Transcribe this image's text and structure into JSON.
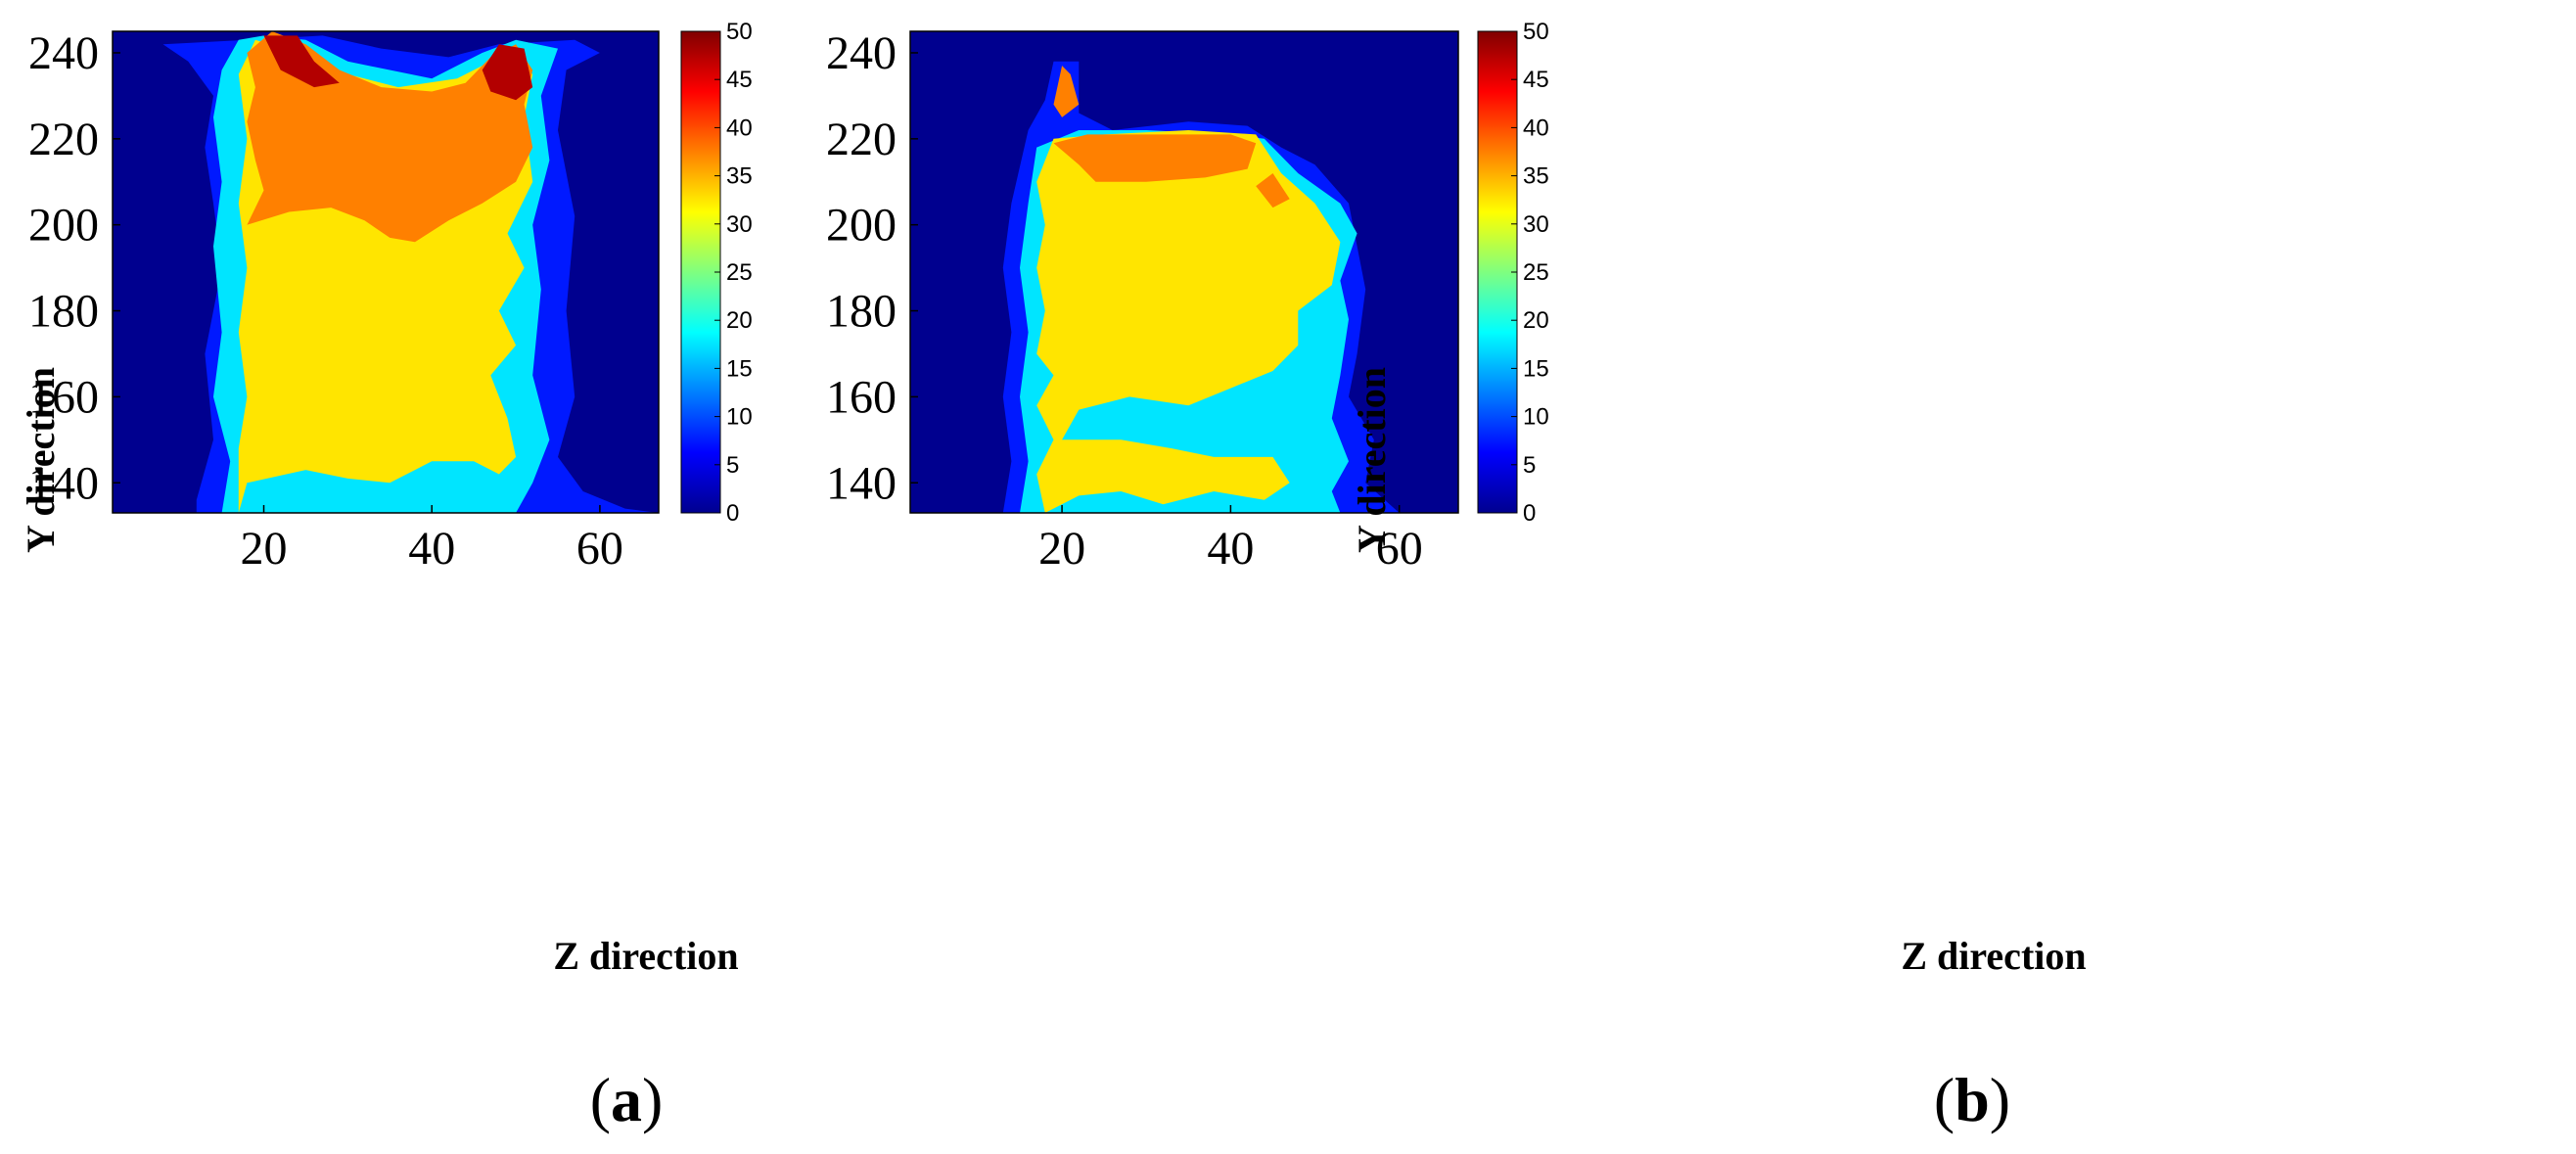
{
  "figure": {
    "panels": [
      {
        "label_open": "(",
        "label_letter": "a",
        "label_close": ")"
      },
      {
        "label_open": "(",
        "label_letter": "b",
        "label_close": ")"
      }
    ]
  },
  "chart_data": [
    {
      "type": "heatmap",
      "subtype": "filled-contour",
      "panel": "a",
      "xlabel": "Z direction",
      "ylabel": "Y direction",
      "xlim": [
        2,
        67
      ],
      "ylim": [
        133,
        245
      ],
      "xticks": [
        20,
        40,
        60
      ],
      "yticks": [
        140,
        160,
        180,
        200,
        220,
        240
      ],
      "colorbar": {
        "min": 0,
        "max": 50,
        "ticks": [
          0,
          5,
          10,
          15,
          20,
          25,
          30,
          35,
          40,
          45,
          50
        ],
        "colormap": "jet"
      },
      "contour_levels": [
        0,
        5,
        10,
        15,
        20,
        25,
        30,
        35,
        40,
        45,
        50
      ],
      "background_level_color": "#00008f",
      "regions": [
        {
          "level": 7.5,
          "points": [
            [
              12,
              133
            ],
            [
              12,
              136
            ],
            [
              14,
              150
            ],
            [
              13,
              170
            ],
            [
              15,
              190
            ],
            [
              14,
              205
            ],
            [
              13,
              218
            ],
            [
              14,
              230
            ],
            [
              11,
              238
            ],
            [
              8,
              242
            ],
            [
              18,
              243
            ],
            [
              27,
              244
            ],
            [
              34,
              241
            ],
            [
              42,
              239
            ],
            [
              48,
              242
            ],
            [
              57,
              243
            ],
            [
              60,
              240
            ],
            [
              56,
              236
            ],
            [
              55,
              222
            ],
            [
              57,
              202
            ],
            [
              56,
              180
            ],
            [
              57,
              160
            ],
            [
              55,
              146
            ],
            [
              58,
              138
            ],
            [
              63,
              134
            ],
            [
              67,
              133
            ]
          ]
        },
        {
          "level": 17.5,
          "points": [
            [
              15,
              133
            ],
            [
              16,
              145
            ],
            [
              14,
              160
            ],
            [
              15,
              175
            ],
            [
              14,
              195
            ],
            [
              15,
              210
            ],
            [
              14,
              225
            ],
            [
              15,
              236
            ],
            [
              17,
              243
            ],
            [
              20,
              244
            ],
            [
              25,
              243
            ],
            [
              30,
              238
            ],
            [
              40,
              234
            ],
            [
              46,
              240
            ],
            [
              50,
              243
            ],
            [
              55,
              241
            ],
            [
              53,
              230
            ],
            [
              54,
              215
            ],
            [
              52,
              200
            ],
            [
              53,
              185
            ],
            [
              52,
              165
            ],
            [
              54,
              150
            ],
            [
              52,
              140
            ],
            [
              50,
              133
            ]
          ]
        },
        {
          "level": 32.5,
          "points": [
            [
              17,
              133
            ],
            [
              18,
              140
            ],
            [
              25,
              143
            ],
            [
              30,
              141
            ],
            [
              35,
              140
            ],
            [
              38,
              143
            ],
            [
              40,
              145
            ],
            [
              45,
              145
            ],
            [
              48,
              142
            ],
            [
              50,
              146
            ],
            [
              49,
              155
            ],
            [
              47,
              165
            ],
            [
              50,
              172
            ],
            [
              48,
              180
            ],
            [
              51,
              190
            ],
            [
              49,
              198
            ],
            [
              52,
              210
            ],
            [
              51,
              225
            ],
            [
              52,
              235
            ],
            [
              49,
              240
            ],
            [
              43,
              234
            ],
            [
              36,
              232
            ],
            [
              30,
              235
            ],
            [
              24,
              240
            ],
            [
              19,
              243
            ],
            [
              17,
              235
            ],
            [
              18,
              220
            ],
            [
              17,
              205
            ],
            [
              18,
              190
            ],
            [
              17,
              175
            ],
            [
              18,
              160
            ],
            [
              17,
              148
            ]
          ]
        },
        {
          "level": 37.5,
          "points": [
            [
              18,
              200
            ],
            [
              20,
              208
            ],
            [
              19,
              215
            ],
            [
              18,
              224
            ],
            [
              19,
              232
            ],
            [
              18,
              240
            ],
            [
              21,
              245
            ],
            [
              25,
              242
            ],
            [
              29,
              236
            ],
            [
              34,
              232
            ],
            [
              40,
              231
            ],
            [
              44,
              233
            ],
            [
              47,
              239
            ],
            [
              50,
              242
            ],
            [
              52,
              236
            ],
            [
              51,
              228
            ],
            [
              52,
              218
            ],
            [
              50,
              210
            ],
            [
              46,
              205
            ],
            [
              42,
              201
            ],
            [
              38,
              196
            ],
            [
              35,
              197
            ],
            [
              32,
              201
            ],
            [
              28,
              204
            ],
            [
              23,
              203
            ]
          ]
        },
        {
          "level": 47.5,
          "points": [
            [
              20,
              244
            ],
            [
              24,
              244
            ],
            [
              26,
              238
            ],
            [
              29,
              233
            ],
            [
              26,
              232
            ],
            [
              22,
              236
            ]
          ]
        },
        {
          "level": 47.5,
          "points": [
            [
              46,
              236
            ],
            [
              48,
              242
            ],
            [
              51,
              241
            ],
            [
              52,
              232
            ],
            [
              50,
              229
            ],
            [
              47,
              231
            ]
          ]
        }
      ]
    },
    {
      "type": "heatmap",
      "subtype": "filled-contour",
      "panel": "b",
      "xlabel": "Z direction",
      "ylabel": "Y direction",
      "xlim": [
        2,
        67
      ],
      "ylim": [
        133,
        245
      ],
      "xticks": [
        20,
        40,
        60
      ],
      "yticks": [
        140,
        160,
        180,
        200,
        220,
        240
      ],
      "colorbar": {
        "min": 0,
        "max": 50,
        "ticks": [
          0,
          5,
          10,
          15,
          20,
          25,
          30,
          35,
          40,
          45,
          50
        ],
        "colormap": "jet"
      },
      "contour_levels": [
        0,
        5,
        10,
        15,
        20,
        25,
        30,
        35,
        40,
        45,
        50
      ],
      "background_level_color": "#00008f",
      "regions": [
        {
          "level": 7.5,
          "points": [
            [
              13,
              133
            ],
            [
              14,
              145
            ],
            [
              13,
              160
            ],
            [
              14,
              175
            ],
            [
              13,
              190
            ],
            [
              14,
              205
            ],
            [
              16,
              222
            ],
            [
              18,
              229
            ],
            [
              19,
              238
            ],
            [
              22,
              238
            ],
            [
              22,
              226
            ],
            [
              26,
              222
            ],
            [
              35,
              224
            ],
            [
              42,
              223
            ],
            [
              46,
              218
            ],
            [
              50,
              214
            ],
            [
              54,
              205
            ],
            [
              55,
              195
            ],
            [
              56,
              185
            ],
            [
              55,
              170
            ],
            [
              54,
              160
            ],
            [
              57,
              150
            ],
            [
              56,
              140
            ],
            [
              60,
              133
            ]
          ]
        },
        {
          "level": 17.5,
          "points": [
            [
              15,
              133
            ],
            [
              16,
              145
            ],
            [
              15,
              160
            ],
            [
              16,
              175
            ],
            [
              15,
              190
            ],
            [
              16,
              205
            ],
            [
              17,
              218
            ],
            [
              22,
              222
            ],
            [
              30,
              222
            ],
            [
              40,
              221
            ],
            [
              44,
              220
            ],
            [
              48,
              212
            ],
            [
              53,
              205
            ],
            [
              55,
              198
            ],
            [
              53,
              187
            ],
            [
              54,
              178
            ],
            [
              53,
              165
            ],
            [
              52,
              155
            ],
            [
              54,
              145
            ],
            [
              52,
              138
            ],
            [
              53,
              133
            ]
          ]
        },
        {
          "level": 32.5,
          "points": [
            [
              18,
              133
            ],
            [
              22,
              137
            ],
            [
              27,
              138
            ],
            [
              32,
              135
            ],
            [
              38,
              138
            ],
            [
              44,
              136
            ],
            [
              47,
              140
            ],
            [
              45,
              146
            ],
            [
              38,
              146
            ],
            [
              33,
              148
            ],
            [
              27,
              150
            ],
            [
              20,
              150
            ],
            [
              22,
              157
            ],
            [
              28,
              160
            ],
            [
              35,
              158
            ],
            [
              40,
              162
            ],
            [
              45,
              166
            ],
            [
              48,
              172
            ],
            [
              48,
              180
            ],
            [
              52,
              186
            ],
            [
              53,
              196
            ],
            [
              50,
              205
            ],
            [
              46,
              212
            ],
            [
              43,
              221
            ],
            [
              35,
              222
            ],
            [
              25,
              221
            ],
            [
              19,
              220
            ],
            [
              17,
              210
            ],
            [
              18,
              200
            ],
            [
              17,
              190
            ],
            [
              18,
              180
            ],
            [
              17,
              170
            ],
            [
              19,
              165
            ],
            [
              17,
              158
            ],
            [
              19,
              150
            ],
            [
              17,
              142
            ]
          ]
        },
        {
          "level": 37.5,
          "points": [
            [
              19,
              219
            ],
            [
              23,
              221
            ],
            [
              31,
              221
            ],
            [
              40,
              221
            ],
            [
              43,
              219
            ],
            [
              42,
              213
            ],
            [
              37,
              211
            ],
            [
              30,
              210
            ],
            [
              24,
              210
            ],
            [
              22,
              214
            ]
          ]
        },
        {
          "level": 37.5,
          "points": [
            [
              19,
              228
            ],
            [
              20,
              237
            ],
            [
              21,
              235
            ],
            [
              22,
              228
            ],
            [
              20,
              225
            ]
          ]
        },
        {
          "level": 37.5,
          "points": [
            [
              43,
              209
            ],
            [
              45,
              212
            ],
            [
              47,
              206
            ],
            [
              45,
              204
            ]
          ]
        }
      ]
    }
  ]
}
